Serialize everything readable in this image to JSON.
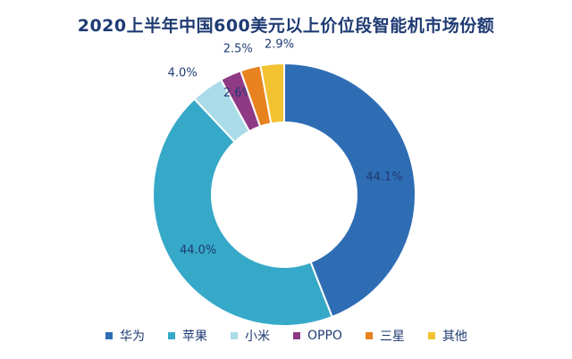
{
  "chart_data": {
    "type": "pie",
    "title": "2020上半年中国600美元以上价位段智能机市场份额",
    "categories": [
      "华为",
      "苹果",
      "小米",
      "OPPO",
      "三星",
      "其他"
    ],
    "values": [
      44.1,
      44.0,
      4.0,
      2.6,
      2.5,
      2.9
    ],
    "value_labels": [
      "44.1%",
      "44.0%",
      "4.0%",
      "2.6%",
      "2.5%",
      "2.9%"
    ],
    "colors": [
      "#2E6DB4",
      "#36A9C8",
      "#A9DCE8",
      "#8E3A84",
      "#E8821E",
      "#F2C230"
    ],
    "legend_position": "bottom",
    "donut": true
  }
}
